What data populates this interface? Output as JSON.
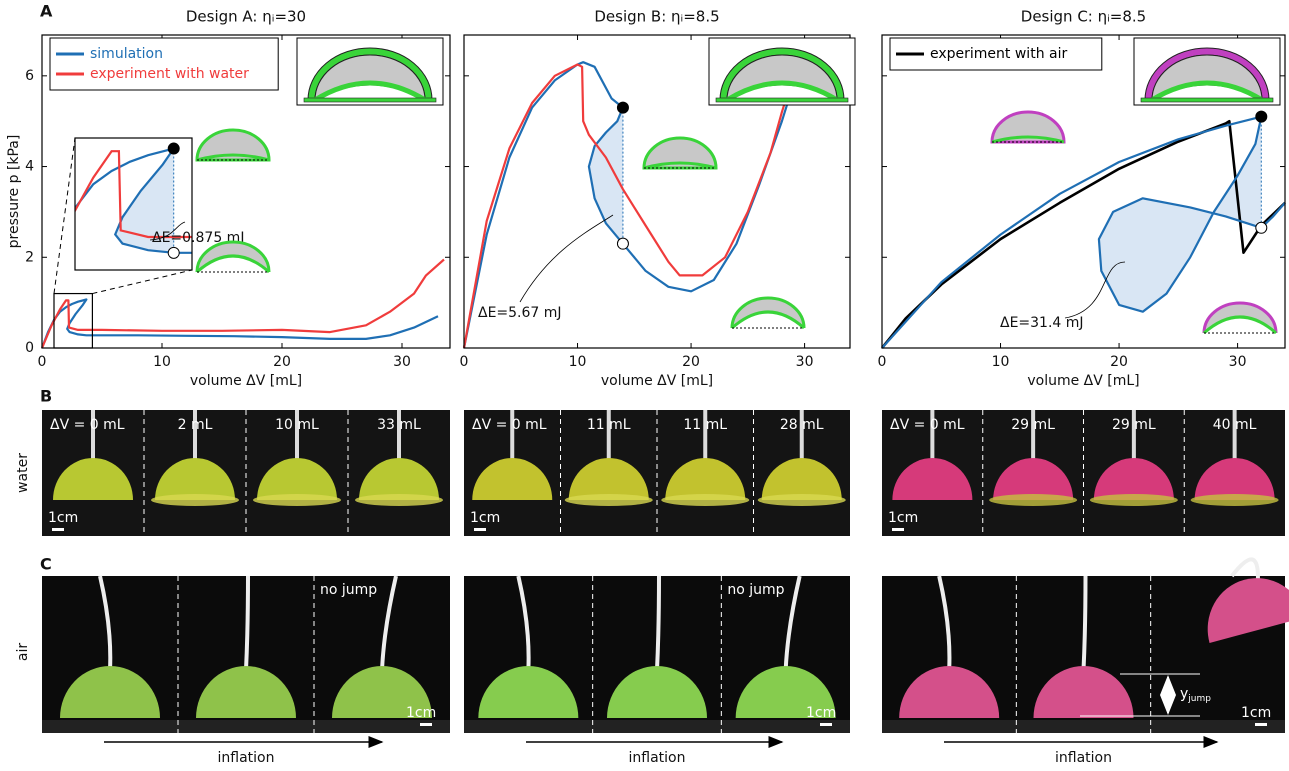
{
  "panel_labels": [
    "A",
    "B",
    "C"
  ],
  "chart_data": [
    {
      "type": "line",
      "title": "Design A: ηᵢ=30",
      "xlabel": "volume ΔV [mL]",
      "ylabel": "pressure p [kPa]",
      "xlim": [
        0,
        34
      ],
      "ylim": [
        0,
        6.9
      ],
      "xticks": [
        0,
        10,
        20,
        30
      ],
      "yticks": [
        0,
        2,
        4,
        6
      ],
      "show_ytick_labels": true,
      "legend": "upper left",
      "annotation": "ΔE=0.875 mJ",
      "series": [
        {
          "name": "simulation",
          "color": "#1f6fb4",
          "x": [
            0,
            0.5,
            1,
            1.5,
            2,
            2.5,
            3,
            3.7,
            3.4,
            2.8,
            2.3,
            2.1,
            2.3,
            3,
            3.7,
            5,
            8,
            12,
            16,
            20,
            24,
            27,
            29,
            31,
            33
          ],
          "y": [
            0,
            0.35,
            0.62,
            0.8,
            0.9,
            0.97,
            1.02,
            1.07,
            0.95,
            0.75,
            0.55,
            0.42,
            0.35,
            0.3,
            0.28,
            0.28,
            0.28,
            0.27,
            0.26,
            0.24,
            0.2,
            0.2,
            0.28,
            0.45,
            0.7
          ]
        },
        {
          "name": "experiment with water",
          "color": "#f03c3c",
          "x": [
            0,
            0.8,
            1.5,
            2,
            2.2,
            2.25,
            3,
            5,
            10,
            15,
            20,
            24,
            27,
            29,
            31,
            32,
            33.5
          ],
          "y": [
            0,
            0.5,
            0.85,
            1.05,
            1.05,
            0.45,
            0.4,
            0.4,
            0.38,
            0.38,
            0.4,
            0.35,
            0.5,
            0.8,
            1.2,
            1.6,
            1.95
          ]
        }
      ]
    },
    {
      "type": "line",
      "title": "Design B: ηᵢ=8.5",
      "xlabel": "volume ΔV [mL]",
      "xlim": [
        0,
        34
      ],
      "ylim": [
        0,
        6.9
      ],
      "xticks": [
        0,
        10,
        20,
        30
      ],
      "yticks": [
        0,
        2,
        4,
        6
      ],
      "show_ytick_labels": false,
      "annotation": "ΔE=5.67 mJ",
      "series": [
        {
          "color": "#1f6fb4",
          "x": [
            0,
            2,
            4,
            6,
            8,
            10,
            10.5,
            11.5,
            13,
            14,
            13.5,
            12.5,
            11.5,
            11,
            11.5,
            12.5,
            14,
            16,
            18,
            20,
            22,
            24,
            26,
            28,
            29
          ],
          "y": [
            0,
            2.5,
            4.2,
            5.3,
            5.9,
            6.25,
            6.3,
            6.2,
            5.5,
            5.3,
            5.0,
            4.75,
            4.45,
            4.0,
            3.3,
            2.75,
            2.3,
            1.7,
            1.35,
            1.25,
            1.5,
            2.3,
            3.6,
            5.0,
            5.8
          ]
        },
        {
          "color": "#f03c3c",
          "x": [
            0,
            2,
            4,
            6,
            8,
            10,
            10.4,
            10.5,
            11,
            12.5,
            14,
            16,
            18,
            19,
            21,
            23,
            25,
            27,
            28,
            29
          ],
          "y": [
            0,
            2.8,
            4.4,
            5.4,
            6.0,
            6.25,
            6.2,
            5.0,
            4.7,
            4.2,
            3.5,
            2.7,
            1.9,
            1.6,
            1.6,
            2.0,
            3.0,
            4.3,
            5.2,
            6.0
          ]
        }
      ]
    },
    {
      "type": "line",
      "title": "Design C: ηᵢ=8.5",
      "xlabel": "volume ΔV [mL]",
      "xlim": [
        0,
        34
      ],
      "ylim": [
        0,
        6.9
      ],
      "xticks": [
        0,
        10,
        20,
        30
      ],
      "yticks": [
        0,
        2,
        4,
        6
      ],
      "show_ytick_labels": false,
      "legend": "upper left",
      "annotation": "ΔE=31.4 mJ",
      "series": [
        {
          "color": "#1f6fb4",
          "x": [
            0,
            5,
            10,
            15,
            20,
            25,
            29,
            32,
            31.5,
            30,
            28,
            26,
            24,
            22,
            20,
            18.5,
            18.3,
            19.5,
            22,
            26,
            29,
            32,
            33,
            34
          ],
          "y": [
            0,
            1.45,
            2.5,
            3.4,
            4.1,
            4.6,
            4.9,
            5.1,
            4.5,
            3.8,
            3.0,
            2.0,
            1.2,
            0.8,
            0.95,
            1.7,
            2.4,
            3.0,
            3.3,
            3.1,
            2.9,
            2.65,
            2.9,
            3.2
          ]
        },
        {
          "name": "experiment with air",
          "color": "#000000",
          "x": [
            0,
            2,
            5,
            10,
            15,
            20,
            25,
            29,
            29.3,
            30.5,
            31,
            32,
            34
          ],
          "y": [
            0,
            0.65,
            1.4,
            2.4,
            3.2,
            3.95,
            4.55,
            4.95,
            5.0,
            2.1,
            2.3,
            2.7,
            3.2
          ]
        }
      ]
    }
  ],
  "photos_water": {
    "row_label": "water",
    "scale": "1cm",
    "panels": [
      [
        "ΔV = 0 mL",
        "2 mL",
        "10 mL",
        "33 mL"
      ],
      [
        "ΔV = 0 mL",
        "11 mL",
        "11 mL",
        "28 mL"
      ],
      [
        "ΔV = 0 mL",
        "29 mL",
        "29 mL",
        "40 mL"
      ]
    ]
  },
  "photos_air": {
    "row_label": "air",
    "scale": "1cm",
    "arrow": "inflation",
    "no_jump": "no jump",
    "jump_label": {
      "base": "y",
      "sub": "jump"
    }
  }
}
